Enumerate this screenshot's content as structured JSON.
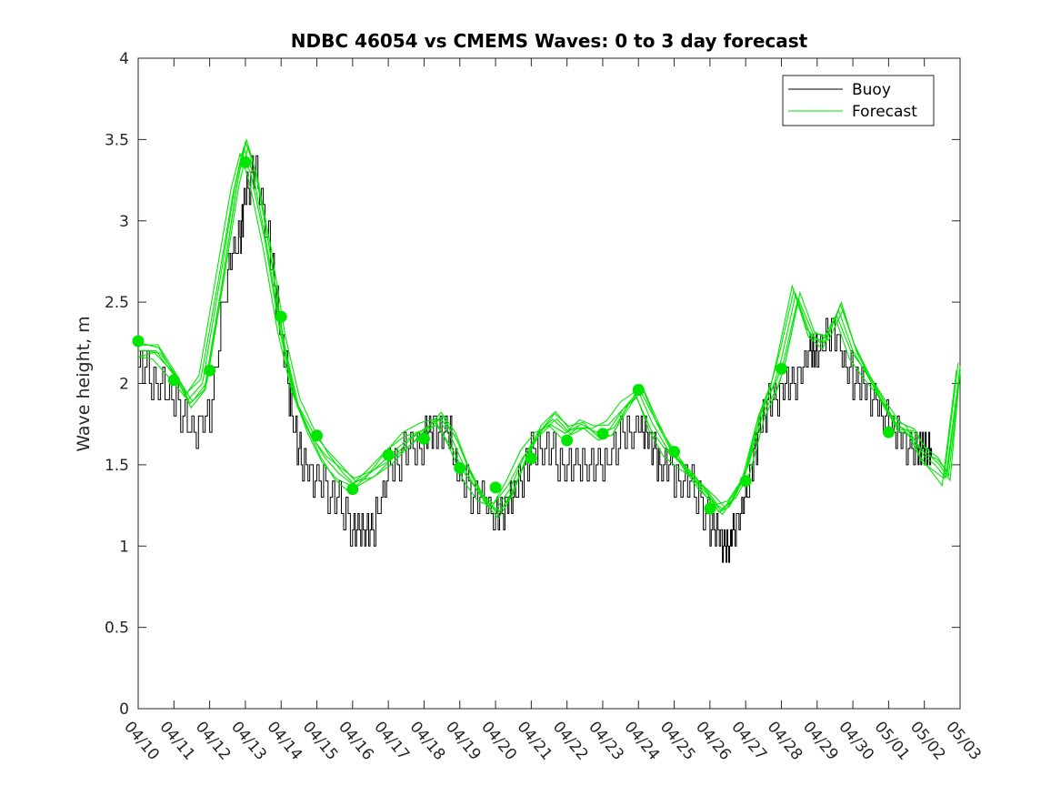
{
  "chart_data": {
    "type": "line",
    "title": "NDBC 46054 vs CMEMS Waves: 0 to 3 day forecast",
    "xlabel": "",
    "ylabel": "Wave height, m",
    "xlim": [
      0,
      23
    ],
    "ylim": [
      0,
      4
    ],
    "yticks": [
      0,
      0.5,
      1,
      1.5,
      2,
      2.5,
      3,
      3.5,
      4
    ],
    "ytick_labels": [
      "0",
      "0.5",
      "1",
      "1.5",
      "2",
      "2.5",
      "3",
      "3.5",
      "4"
    ],
    "xtick_labels": [
      "04/10",
      "04/11",
      "04/12",
      "04/13",
      "04/14",
      "04/15",
      "04/16",
      "04/17",
      "04/18",
      "04/19",
      "04/20",
      "04/21",
      "04/22",
      "04/23",
      "04/24",
      "04/25",
      "04/26",
      "04/27",
      "04/28",
      "04/29",
      "04/30",
      "05/01",
      "05/02",
      "05/03"
    ],
    "legend": {
      "position": "top-right",
      "entries": [
        "Buoy",
        "Forecast"
      ]
    },
    "colors": {
      "buoy": "#000000",
      "forecast": "#00e600"
    },
    "series": [
      {
        "name": "Buoy",
        "x": [
          0,
          0.5,
          1,
          1.5,
          2,
          2.5,
          2.85,
          3,
          3.3,
          3.7,
          4,
          4.3,
          4.6,
          5,
          5.5,
          6,
          6.3,
          6.6,
          7,
          7.5,
          8,
          8.3,
          8.7,
          9,
          9.5,
          10,
          10.3,
          10.6,
          11,
          11.5,
          12,
          12.5,
          13,
          13.5,
          14,
          14.3,
          14.6,
          15,
          15.5,
          16,
          16.3,
          16.5,
          16.7,
          17,
          17.3,
          17.6,
          18,
          18.4,
          18.8,
          19,
          19.4,
          19.8,
          20.2,
          20.6,
          21,
          21.4,
          21.8,
          22,
          22.2
        ],
        "y": [
          2.1,
          2.0,
          1.9,
          1.7,
          1.8,
          2.7,
          2.9,
          3.2,
          3.3,
          2.8,
          2.3,
          1.8,
          1.5,
          1.4,
          1.3,
          1.1,
          1.05,
          1.15,
          1.45,
          1.6,
          1.65,
          1.75,
          1.7,
          1.4,
          1.3,
          1.2,
          1.25,
          1.35,
          1.55,
          1.6,
          1.45,
          1.5,
          1.5,
          1.65,
          1.75,
          1.65,
          1.5,
          1.45,
          1.35,
          1.15,
          1.05,
          1.0,
          1.1,
          1.3,
          1.65,
          1.85,
          1.95,
          2.0,
          2.2,
          2.15,
          2.35,
          2.1,
          2.0,
          1.9,
          1.75,
          1.65,
          1.6,
          1.6,
          1.55
        ]
      },
      {
        "name": "Forecast",
        "x": [
          0,
          0.5,
          1,
          1.4,
          1.8,
          2.3,
          2.7,
          2.95,
          3.2,
          3.6,
          4,
          4.4,
          4.8,
          5.2,
          5.6,
          6,
          6.5,
          7,
          7.5,
          8,
          8.4,
          8.8,
          9.2,
          9.6,
          10,
          10.4,
          10.8,
          11.2,
          11.6,
          12,
          12.4,
          12.8,
          13.2,
          13.6,
          14,
          14.4,
          14.8,
          15.2,
          15.6,
          16,
          16.3,
          16.6,
          17,
          17.4,
          17.8,
          18,
          18.4,
          18.8,
          19.2,
          19.6,
          20,
          20.4,
          20.8,
          21.2,
          21.6,
          22,
          22.3,
          22.6,
          23
        ],
        "y": [
          2.2,
          2.2,
          2.05,
          1.9,
          2.0,
          2.65,
          3.2,
          3.45,
          3.3,
          2.85,
          2.3,
          1.9,
          1.7,
          1.55,
          1.45,
          1.38,
          1.45,
          1.55,
          1.65,
          1.72,
          1.78,
          1.65,
          1.45,
          1.3,
          1.22,
          1.35,
          1.55,
          1.7,
          1.78,
          1.7,
          1.75,
          1.7,
          1.72,
          1.85,
          1.95,
          1.75,
          1.6,
          1.5,
          1.4,
          1.3,
          1.22,
          1.28,
          1.45,
          1.8,
          2.0,
          2.15,
          2.55,
          2.3,
          2.25,
          2.45,
          2.2,
          2.05,
          1.9,
          1.75,
          1.7,
          1.55,
          1.5,
          1.42,
          2.1
        ]
      },
      {
        "name": "Forecast markers",
        "x": [
          0,
          1,
          2,
          3,
          4,
          5,
          6,
          7,
          8,
          9,
          10,
          11,
          12,
          13,
          14,
          15,
          16,
          17,
          18,
          21
        ],
        "y": [
          2.26,
          2.02,
          2.08,
          3.36,
          2.41,
          1.68,
          1.35,
          1.56,
          1.66,
          1.48,
          1.36,
          1.54,
          1.65,
          1.69,
          1.96,
          1.58,
          1.23,
          1.4,
          2.09,
          1.7
        ]
      }
    ]
  }
}
